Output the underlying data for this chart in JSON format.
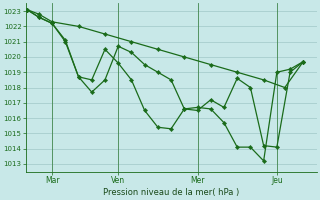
{
  "background_color": "#c8e8e8",
  "grid_color": "#a0c8c8",
  "line_color": "#1a6b1a",
  "marker_color": "#1a6b1a",
  "xlabel": "Pression niveau de la mer( hPa )",
  "ylim": [
    1012.5,
    1023.5
  ],
  "yticks": [
    1013,
    1014,
    1015,
    1016,
    1017,
    1018,
    1019,
    1020,
    1021,
    1022,
    1023
  ],
  "xtick_labels": [
    "Mar",
    "Ven",
    "Mer",
    "Jeu"
  ],
  "xtick_positions": [
    1.0,
    3.5,
    6.5,
    9.5
  ],
  "xlim": [
    0.0,
    11.0
  ],
  "series1": {
    "x": [
      0.05,
      0.5,
      1.0,
      2.0,
      3.0,
      4.0,
      5.0,
      6.0,
      7.0,
      8.0,
      9.0,
      9.8,
      10.5
    ],
    "y": [
      1023.1,
      1022.8,
      1022.3,
      1022.0,
      1021.5,
      1021.0,
      1020.5,
      1020.0,
      1019.5,
      1019.0,
      1018.5,
      1018.0,
      1019.7
    ]
  },
  "series2": {
    "x": [
      0.05,
      0.5,
      1.0,
      1.5,
      2.0,
      2.5,
      3.0,
      3.5,
      4.0,
      4.5,
      5.0,
      5.5,
      6.0,
      6.5,
      7.0,
      7.5,
      8.0,
      8.5,
      9.0,
      9.5,
      10.0,
      10.5
    ],
    "y": [
      1023.1,
      1022.6,
      1022.2,
      1021.0,
      1018.7,
      1017.7,
      1018.5,
      1020.7,
      1020.3,
      1019.5,
      1019.0,
      1018.5,
      1016.6,
      1016.5,
      1017.2,
      1016.7,
      1018.6,
      1018.0,
      1014.2,
      1014.1,
      1019.0,
      1019.7
    ]
  },
  "series3": {
    "x": [
      0.05,
      0.5,
      1.0,
      1.5,
      2.0,
      2.5,
      3.0,
      3.5,
      4.0,
      4.5,
      5.0,
      5.5,
      6.0,
      6.5,
      7.0,
      7.5,
      8.0,
      8.5,
      9.0,
      9.5,
      10.0,
      10.5
    ],
    "y": [
      1023.1,
      1022.6,
      1022.2,
      1021.1,
      1018.7,
      1018.5,
      1020.5,
      1019.6,
      1018.5,
      1016.5,
      1015.4,
      1015.3,
      1016.6,
      1016.7,
      1016.6,
      1015.7,
      1014.1,
      1014.1,
      1013.2,
      1019.0,
      1019.2,
      1019.7
    ]
  }
}
